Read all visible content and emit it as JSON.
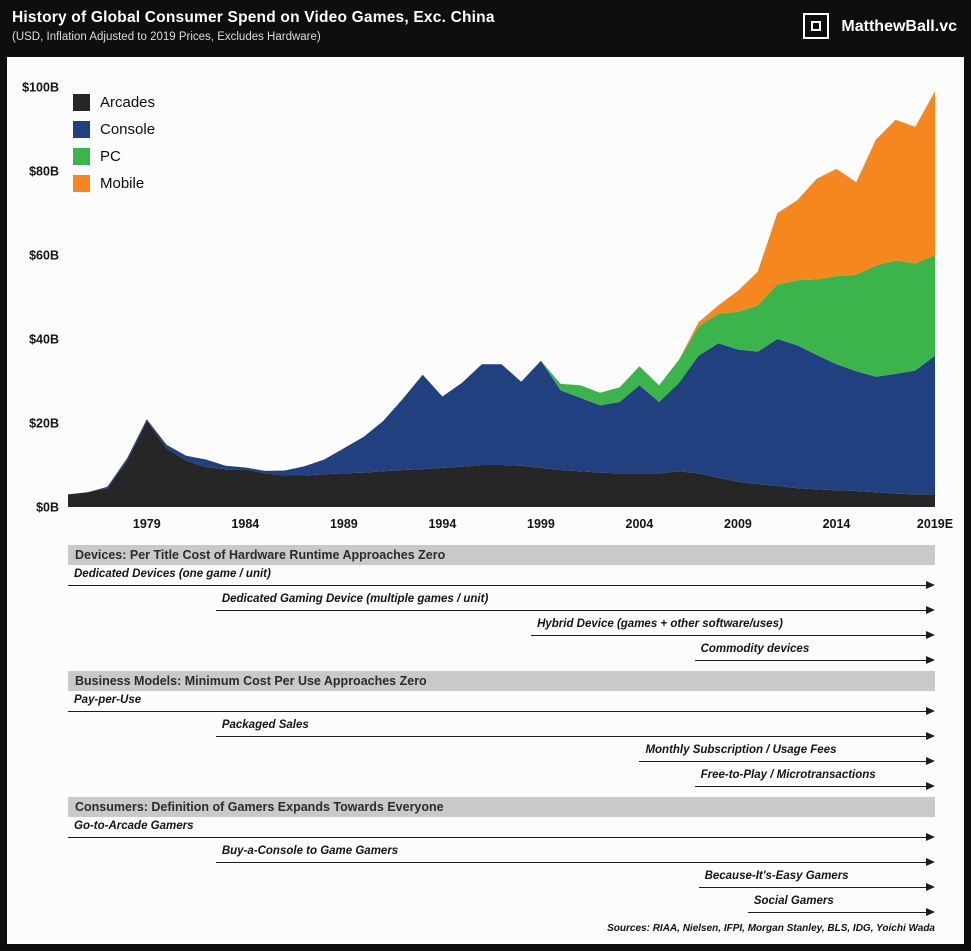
{
  "header": {
    "title": "History of Global Consumer Spend on Video Games, Exc. China",
    "subtitle": "(USD, Inflation Adjusted to 2019 Prices, Excludes Hardware)",
    "brand": "MatthewBall.vc"
  },
  "chart_data": {
    "type": "area",
    "stacked": true,
    "title": "History of Global Consumer Spend on Video Games, Exc. China",
    "subtitle": "(USD, Inflation Adjusted to 2019 Prices, Excludes Hardware)",
    "unit": "USD billions",
    "xlim": [
      1975,
      2019
    ],
    "ylim": [
      0,
      100
    ],
    "grid": false,
    "legend_position": "top-left",
    "x": [
      1975,
      1976,
      1977,
      1978,
      1979,
      1980,
      1981,
      1982,
      1983,
      1984,
      1985,
      1986,
      1987,
      1988,
      1989,
      1990,
      1991,
      1992,
      1993,
      1994,
      1995,
      1996,
      1997,
      1998,
      1999,
      2000,
      2001,
      2002,
      2003,
      2004,
      2005,
      2006,
      2007,
      2008,
      2009,
      2010,
      2011,
      2012,
      2013,
      2014,
      2015,
      2016,
      2017,
      2018,
      2019
    ],
    "x_tick_years": [
      1979,
      1984,
      1989,
      1994,
      1999,
      2004,
      2009,
      2014,
      2019
    ],
    "x_tick_labels": [
      "1979",
      "1984",
      "1989",
      "1994",
      "1999",
      "2004",
      "2009",
      "2014",
      "2019E"
    ],
    "y_ticks": [
      0,
      20,
      40,
      60,
      80,
      100
    ],
    "y_tick_labels": [
      "$0B",
      "$20B",
      "$40B",
      "$60B",
      "$80B",
      "$100B"
    ],
    "series": [
      {
        "name": "Arcades",
        "color": "#262626",
        "values": [
          3,
          3.5,
          4.5,
          11,
          20.5,
          14,
          11,
          9.5,
          9,
          9,
          8,
          7.5,
          7.5,
          7.8,
          8,
          8.2,
          8.5,
          8.8,
          9,
          9.3,
          9.6,
          10,
          10,
          9.8,
          9.3,
          8.8,
          8.5,
          8.2,
          8,
          8,
          8,
          8.5,
          8,
          7,
          6,
          5.5,
          5,
          4.5,
          4.2,
          4,
          3.8,
          3.5,
          3.2,
          3,
          3
        ]
      },
      {
        "name": "Console",
        "color": "#20407f",
        "values": [
          0,
          0,
          0.3,
          0.6,
          0.4,
          0.8,
          1.2,
          1.8,
          0.8,
          0.4,
          0.6,
          1.2,
          2.2,
          3.5,
          6,
          8.5,
          12,
          17,
          22.5,
          17,
          20,
          24,
          24,
          20,
          25.5,
          19,
          17.5,
          16,
          17,
          21,
          17,
          21,
          28,
          32,
          31.5,
          31.5,
          35,
          34,
          32,
          30,
          28.5,
          27.5,
          28.5,
          29.5,
          33
        ]
      },
      {
        "name": "PC",
        "color": "#3bb54b",
        "values": [
          0,
          0,
          0,
          0,
          0,
          0,
          0,
          0,
          0,
          0,
          0,
          0,
          0,
          0,
          0,
          0,
          0,
          0,
          0,
          0,
          0,
          0,
          0,
          0,
          0,
          1.5,
          3,
          3,
          3.5,
          4.5,
          4,
          5.5,
          7,
          7,
          9,
          11,
          13,
          15.5,
          18,
          21,
          23,
          26.5,
          27,
          25.5,
          24
        ]
      },
      {
        "name": "Mobile",
        "color": "#f6871f",
        "values": [
          0,
          0,
          0,
          0,
          0,
          0,
          0,
          0,
          0,
          0,
          0,
          0,
          0,
          0,
          0,
          0,
          0,
          0,
          0,
          0,
          0,
          0,
          0,
          0,
          0,
          0,
          0,
          0,
          0,
          0,
          0,
          0,
          1,
          2,
          5,
          8,
          17,
          19,
          24,
          25.5,
          22,
          30,
          33.5,
          32.5,
          39
        ]
      }
    ]
  },
  "timelines": [
    {
      "heading": "Devices: Per Title Cost of Hardware Runtime Approaches Zero",
      "rows": [
        {
          "label": "Dedicated Devices (one game / unit)",
          "start_year": 1975
        },
        {
          "label": "Dedicated Gaming Device (multiple games / unit)",
          "start_year": 1982.5
        },
        {
          "label": "Hybrid Device (games + other software/uses)",
          "start_year": 1998.5
        },
        {
          "label": "Commodity devices",
          "start_year": 2006.8
        }
      ]
    },
    {
      "heading": "Business Models: Minimum Cost Per Use Approaches Zero",
      "rows": [
        {
          "label": "Pay-per-Use",
          "start_year": 1975
        },
        {
          "label": "Packaged Sales",
          "start_year": 1982.5
        },
        {
          "label": "Monthly Subscription / Usage Fees",
          "start_year": 2004
        },
        {
          "label": "Free-to-Play / Microtransactions",
          "start_year": 2006.8
        }
      ]
    },
    {
      "heading": "Consumers: Definition of Gamers Expands Towards Everyone",
      "rows": [
        {
          "label": "Go-to-Arcade Gamers",
          "start_year": 1975
        },
        {
          "label": "Buy-a-Console to Game Gamers",
          "start_year": 1982.5
        },
        {
          "label": "Because-It's-Easy Gamers",
          "start_year": 2007
        },
        {
          "label": "Social Gamers",
          "start_year": 2009.5
        }
      ]
    }
  ],
  "footer": {
    "sources": "Sources: RIAA, Nielsen, IFPI, Morgan Stanley, BLS, IDG, Yoichi Wada"
  }
}
